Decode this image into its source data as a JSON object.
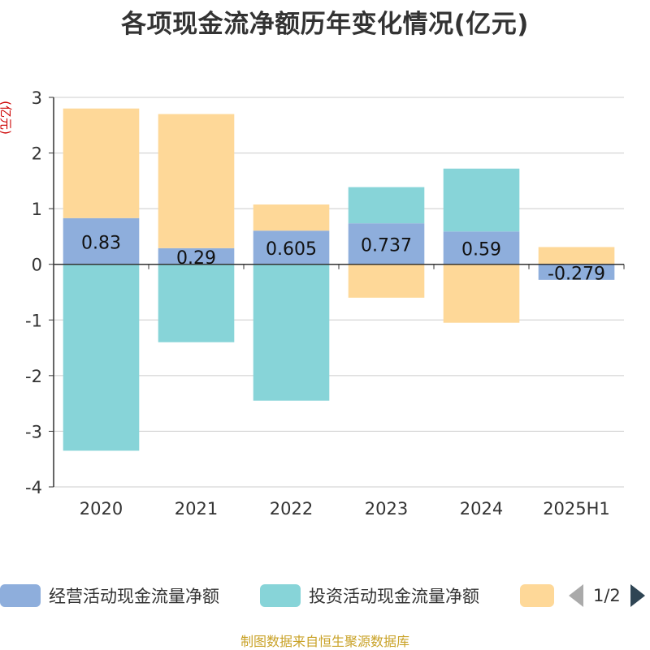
{
  "title": "各项现金流净额历年变化情况(亿元)",
  "source_note": "制图数据来自恒生聚源数据库",
  "colors": {
    "operating": "#8eaedc",
    "investing": "#87d4d8",
    "financing": "#fed898",
    "axis": "#333333",
    "grid": "#cccccc",
    "ylabel": "#cc0000"
  },
  "legend": {
    "items": [
      {
        "label": "经营活动现金流量净额",
        "color": "#8eaedc"
      },
      {
        "label": "投资活动现金流量净额",
        "color": "#87d4d8"
      },
      {
        "label": "",
        "color": "#fed898"
      }
    ],
    "pager": {
      "text": "1/2",
      "prev_icon": "triangle-left-icon",
      "next_icon": "triangle-right-icon"
    }
  },
  "chart_data": {
    "type": "bar",
    "stacked": true,
    "categories": [
      "2020",
      "2021",
      "2022",
      "2023",
      "2024",
      "2025H1"
    ],
    "ylabel": "(亿元)",
    "ylim": [
      -4,
      3
    ],
    "yticks": [
      -4,
      -3,
      -2,
      -1,
      0,
      1,
      2,
      3
    ],
    "grid": true,
    "series": [
      {
        "name": "经营活动现金流量净额",
        "values": [
          0.83,
          0.29,
          0.605,
          0.737,
          0.59,
          -0.279
        ],
        "labels": [
          "0.83",
          "0.29",
          "0.605",
          "0.737",
          "0.59",
          "-0.279"
        ],
        "color": "#8eaedc"
      },
      {
        "name": "投资活动现金流量净额",
        "values": [
          -3.35,
          -1.4,
          -2.45,
          0.65,
          1.13,
          0
        ],
        "color": "#87d4d8"
      },
      {
        "name": "",
        "values": [
          1.97,
          2.41,
          0.47,
          -0.6,
          -1.05,
          0.31
        ],
        "color": "#fed898"
      }
    ]
  }
}
